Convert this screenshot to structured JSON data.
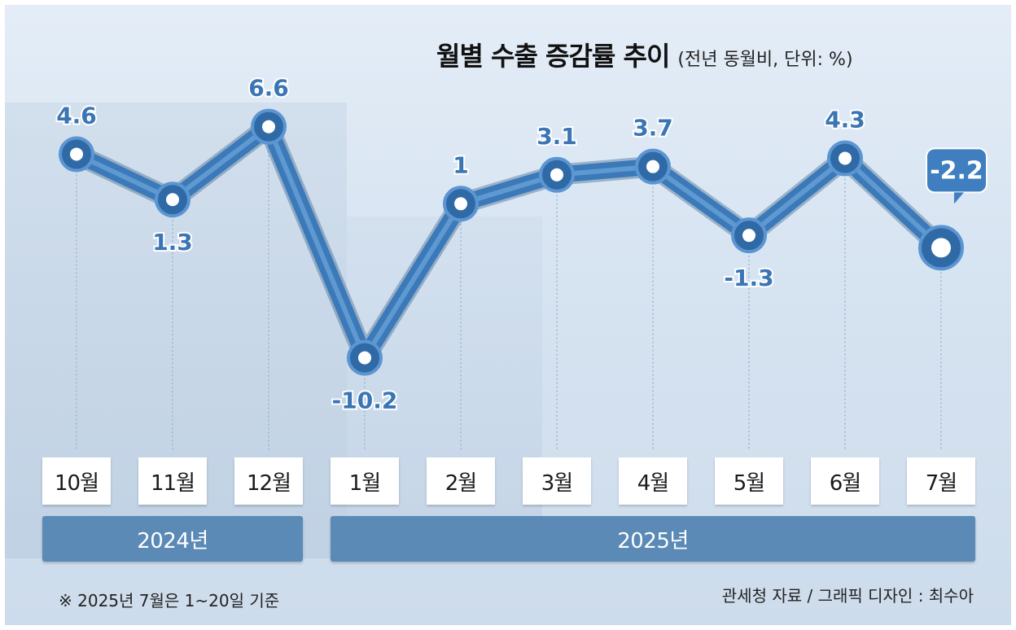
{
  "title": "월별 수출 증감률 추이",
  "subtitle": "(전년 동월비, 단위: %)",
  "chart_data": {
    "type": "line",
    "categories": [
      "10월",
      "11월",
      "12월",
      "1월",
      "2월",
      "3월",
      "4월",
      "5월",
      "6월",
      "7월"
    ],
    "values": [
      4.6,
      1.3,
      6.6,
      -10.2,
      1,
      3.1,
      3.7,
      -1.3,
      4.3,
      -2.2
    ],
    "value_labels": [
      "4.6",
      "1.3",
      "6.6",
      "-10.2",
      "1",
      "3.1",
      "3.7",
      "-1.3",
      "4.3",
      "-2.2"
    ],
    "highlight_index": 9,
    "groups": [
      {
        "label": "2024년",
        "from": 0,
        "to": 2
      },
      {
        "label": "2025년",
        "from": 3,
        "to": 9
      }
    ],
    "ylim": [
      -12,
      8
    ],
    "grid": false,
    "line_color": "#3b79b8",
    "accent_color": "#3f7fbf"
  },
  "footnote": "※ 2025년 7월은 1~20일 기준",
  "credit": "관세청 자료 / 그래픽 디자인 : 최수아"
}
